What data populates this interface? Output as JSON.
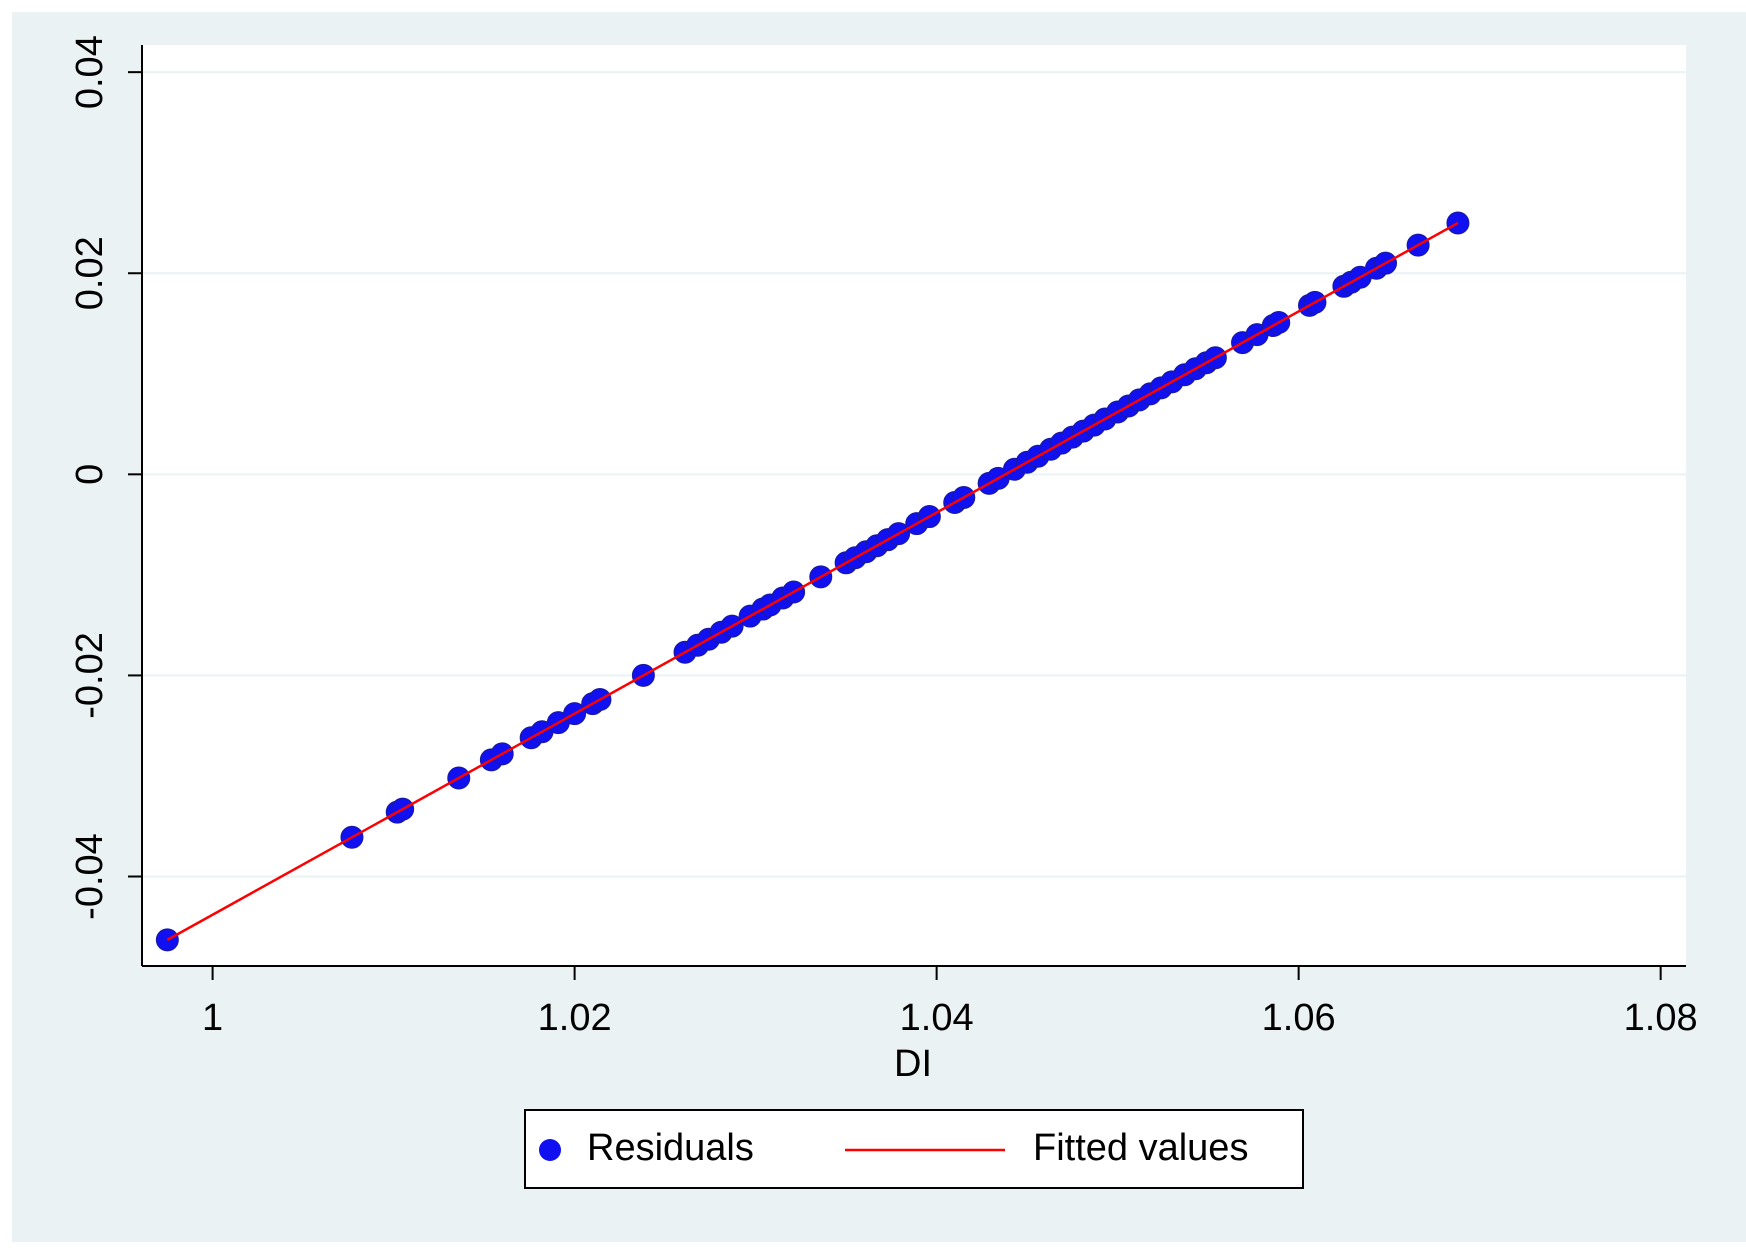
{
  "chart_data": {
    "type": "scatter",
    "x_label": "DI",
    "xlim": [
      0.9961,
      1.0814
    ],
    "xticks": [
      1,
      1.02,
      1.04,
      1.06,
      1.08
    ],
    "ylim": [
      -0.0489,
      0.0427
    ],
    "yticks": [
      -0.04,
      -0.02,
      0,
      0.02,
      0.04
    ],
    "grid": true,
    "legend": "bottom",
    "series": [
      {
        "name": "Residuals",
        "color": "#1010f0",
        "mark": "dot",
        "x": [
          0.9975,
          1.0077,
          1.0102,
          1.0105,
          1.0136,
          1.0154,
          1.016,
          1.0176,
          1.0182,
          1.0191,
          1.02,
          1.021,
          1.0214,
          1.0238,
          1.0261,
          1.0268,
          1.0274,
          1.0281,
          1.0287,
          1.0297,
          1.0304,
          1.0308,
          1.0315,
          1.0321,
          1.0336,
          1.035,
          1.0355,
          1.0361,
          1.0367,
          1.0373,
          1.0379,
          1.0389,
          1.0396,
          1.041,
          1.0415,
          1.0429,
          1.0434,
          1.0443,
          1.045,
          1.0456,
          1.0463,
          1.0469,
          1.0475,
          1.0481,
          1.0487,
          1.0493,
          1.05,
          1.0506,
          1.0512,
          1.0518,
          1.0524,
          1.053,
          1.0537,
          1.0543,
          1.0549,
          1.0554,
          1.0569,
          1.0577,
          1.0586,
          1.0589,
          1.0606,
          1.0609,
          1.0625,
          1.0629,
          1.0634,
          1.0643,
          1.0648,
          1.0666,
          1.0688
        ],
        "values": [
          -0.0463,
          -0.0361,
          -0.0336,
          -0.0333,
          -0.0302,
          -0.0284,
          -0.0278,
          -0.0262,
          -0.0256,
          -0.0247,
          -0.0238,
          -0.0228,
          -0.0224,
          -0.02,
          -0.0177,
          -0.017,
          -0.0164,
          -0.0157,
          -0.0151,
          -0.0141,
          -0.0134,
          -0.013,
          -0.0123,
          -0.0117,
          -0.0102,
          -0.0088,
          -0.0083,
          -0.0077,
          -0.0071,
          -0.0065,
          -0.0059,
          -0.0049,
          -0.0042,
          -0.0028,
          -0.0023,
          -0.0009,
          -0.0004,
          0.0005,
          0.0012,
          0.0018,
          0.0025,
          0.0031,
          0.0037,
          0.0043,
          0.0049,
          0.0055,
          0.0062,
          0.0068,
          0.0074,
          0.008,
          0.0086,
          0.0092,
          0.0099,
          0.0105,
          0.0111,
          0.0116,
          0.0131,
          0.0139,
          0.0148,
          0.0151,
          0.0168,
          0.0171,
          0.0187,
          0.0191,
          0.0196,
          0.0205,
          0.021,
          0.0228,
          0.025
        ]
      },
      {
        "name": "Fitted values",
        "color": "#ff0000",
        "mark": "line",
        "x": [
          0.9975,
          1.0688
        ],
        "values": [
          -0.0463,
          0.025
        ]
      }
    ]
  }
}
